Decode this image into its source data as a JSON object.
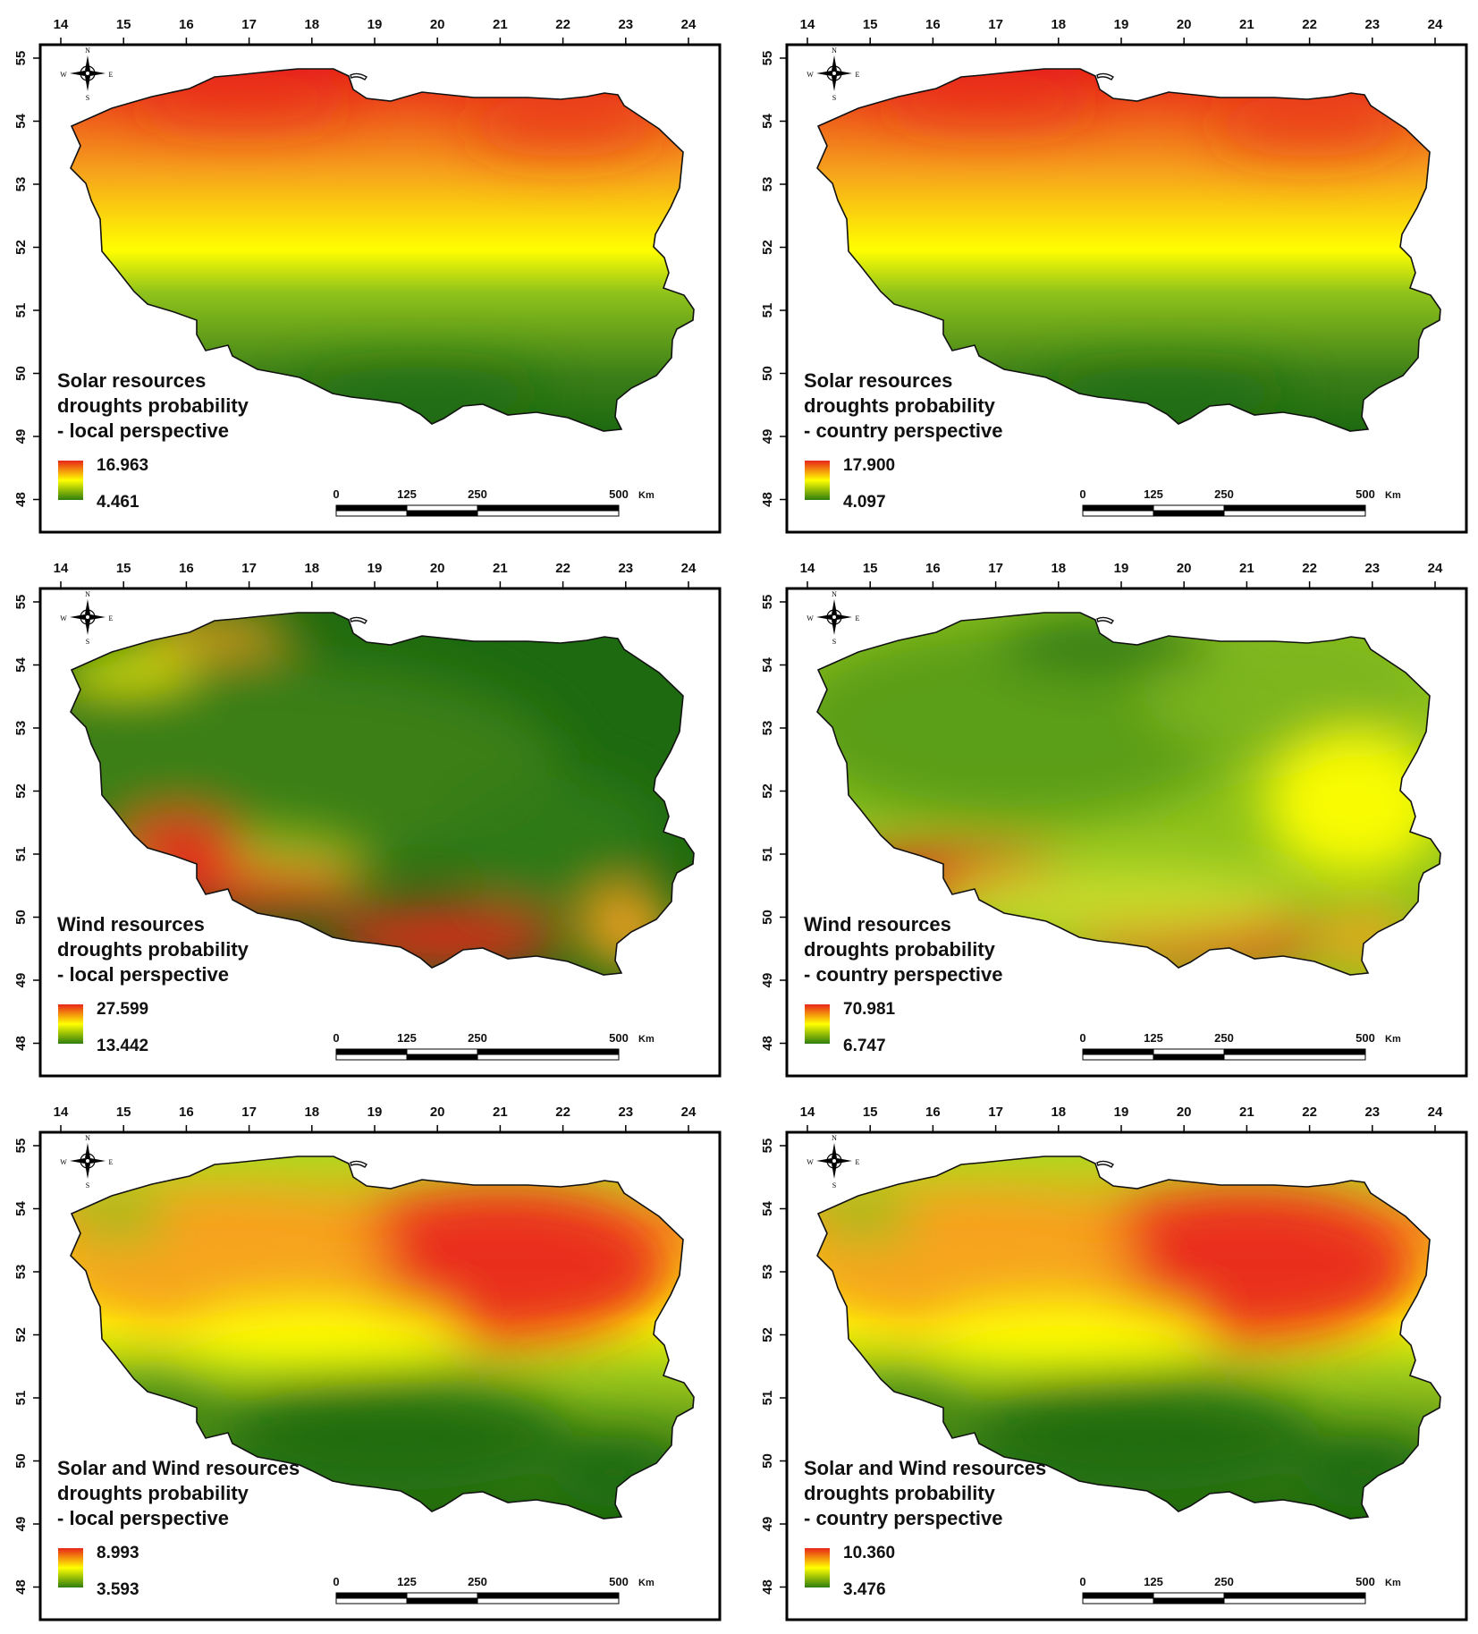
{
  "colors": {
    "high": "#e8261a",
    "mid_high": "#f6a21c",
    "mid": "#ffff00",
    "mid_low": "#9fca1a",
    "low": "#1e6a10",
    "frame": "#000000"
  },
  "axes": {
    "lon_ticks": [
      "14",
      "15",
      "16",
      "17",
      "18",
      "19",
      "20",
      "21",
      "22",
      "23",
      "24"
    ],
    "lat_ticks": [
      "55",
      "54",
      "53",
      "52",
      "51",
      "50",
      "49",
      "48"
    ]
  },
  "compass": {
    "n": "N",
    "s": "S",
    "e": "E",
    "w": "W"
  },
  "scale_bar": {
    "labels": [
      "0",
      "125",
      "250",
      "500"
    ],
    "unit": "Km"
  },
  "panels": [
    {
      "title_lines": [
        "Solar resources",
        "droughts probability",
        "- local perspective"
      ],
      "legend_max": "16.963",
      "legend_min": "4.461",
      "pattern": "solar"
    },
    {
      "title_lines": [
        "Solar resources",
        "droughts probability",
        "- country perspective"
      ],
      "legend_max": "17.900",
      "legend_min": "4.097",
      "pattern": "solar"
    },
    {
      "title_lines": [
        "Wind resources",
        "droughts probability",
        "- local perspective"
      ],
      "legend_max": "27.599",
      "legend_min": "13.442",
      "pattern": "wind_local"
    },
    {
      "title_lines": [
        "Wind resources",
        "droughts probability",
        "- country perspective"
      ],
      "legend_max": "70.981",
      "legend_min": "6.747",
      "pattern": "wind_country"
    },
    {
      "title_lines": [
        "Solar and Wind resources",
        "droughts probability",
        "- local perspective"
      ],
      "legend_max": "8.993",
      "legend_min": "3.593",
      "pattern": "combined"
    },
    {
      "title_lines": [
        "Solar and Wind resources",
        "droughts probability",
        "- country perspective"
      ],
      "legend_max": "10.360",
      "legend_min": "3.476",
      "pattern": "combined"
    }
  ]
}
